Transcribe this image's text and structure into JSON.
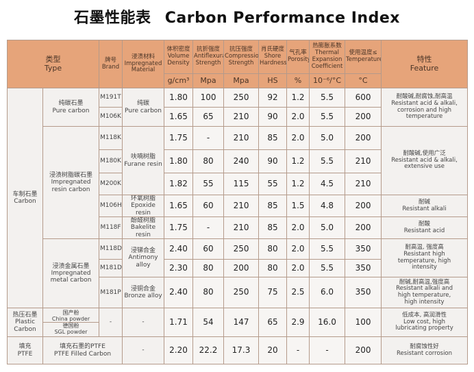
{
  "title_cn": "石墨性能表",
  "title_en": "Carbon Performance Index",
  "headers": {
    "type_cn": "类型",
    "type_en": "Type",
    "brand_cn": "牌号",
    "brand_en": "Brand",
    "impreg_cn": "浸渍材料",
    "impreg_en": "Impregnated Material",
    "density_cn": "体积密度",
    "density_en": "Volume Density",
    "flex_cn": "抗折强度",
    "flex_en": "Antiflexural Strength",
    "comp_cn": "抗压强度",
    "comp_en": "Compression Strength",
    "hard_cn": "肖氏硬度",
    "hard_en": "Shore Hardness",
    "por_cn": "气孔率",
    "por_en": "Porosity",
    "exp_cn": "热膨胀系数",
    "exp_en": "Thermal Expansion Coefficient",
    "temp_cn": "使用温度≤",
    "temp_en": "Temperature",
    "feat_cn": "特性",
    "feat_en": "Feature"
  },
  "units": {
    "density": "g/cm³",
    "flex": "Mpa",
    "comp": "Mpa",
    "hard": "HS",
    "por": "%",
    "exp": "10⁻⁶/°C",
    "temp": "°C"
  },
  "groups": {
    "car_cn": "车制石墨",
    "car_en": "Carbon",
    "pure_cn": "纯碳石墨",
    "pure_en": "Pure carbon",
    "resin_cn": "浸渍树脂碳石墨",
    "resin_en1": "Impregnated",
    "resin_en2": "resin carbon",
    "metal_cn": "浸渍金属石墨",
    "metal_en1": "Impregnated",
    "metal_en2": "metal carbon",
    "hot_cn": "热压石墨",
    "hot_en1": "Plastic",
    "hot_en2": "Carbon",
    "ptfe_cn": "填充",
    "ptfe_en": "PTFE"
  },
  "impregs": {
    "pure_cn": "纯碳",
    "pure_en": "Pure carbon",
    "furane_cn": "呋喃树脂",
    "furane_en": "Furane resin",
    "epoxide_cn": "环氧树脂",
    "epoxide_en": "Epoxide resin",
    "bakelite_cn": "酚醛树脂",
    "bakelite_en": "Bakelite resin",
    "antimony_cn": "浸锑合金",
    "antimony_en1": "Antimony",
    "antimony_en2": "alloy",
    "bronze_cn": "浸铜合金",
    "bronze_en": "Bronze alloy"
  },
  "hot_brands": {
    "cn1": "国产粉",
    "en1": "China powder",
    "cn2": "德国粉",
    "en2": "SGL powder"
  },
  "ptfe_brand": {
    "cn": "填充石墨的PTFE",
    "en": "PTFE Filled Carbon"
  },
  "rows": [
    {
      "brand": "M191T",
      "density": "1.80",
      "flex": "100",
      "comp": "250",
      "hard": "92",
      "por": "1.2",
      "exp": "5.5",
      "temp": "600"
    },
    {
      "brand": "M106K",
      "density": "1.65",
      "flex": "65",
      "comp": "210",
      "hard": "90",
      "por": "2.0",
      "exp": "5.5",
      "temp": "200"
    },
    {
      "brand": "M118K",
      "density": "1.75",
      "flex": "-",
      "comp": "210",
      "hard": "85",
      "por": "2.0",
      "exp": "5.0",
      "temp": "200"
    },
    {
      "brand": "M180K",
      "density": "1.80",
      "flex": "80",
      "comp": "240",
      "hard": "90",
      "por": "1.2",
      "exp": "5.5",
      "temp": "210"
    },
    {
      "brand": "M200K",
      "density": "1.82",
      "flex": "55",
      "comp": "115",
      "hard": "55",
      "por": "1.2",
      "exp": "4.5",
      "temp": "210"
    },
    {
      "brand": "M106H",
      "density": "1.65",
      "flex": "60",
      "comp": "210",
      "hard": "85",
      "por": "1.5",
      "exp": "4.8",
      "temp": "200"
    },
    {
      "brand": "M118F",
      "density": "1.75",
      "flex": "-",
      "comp": "210",
      "hard": "85",
      "por": "2.0",
      "exp": "5.0",
      "temp": "200"
    },
    {
      "brand": "M118D",
      "density": "2.40",
      "flex": "60",
      "comp": "250",
      "hard": "80",
      "por": "2.0",
      "exp": "5.5",
      "temp": "350"
    },
    {
      "brand": "M181D",
      "density": "2.30",
      "flex": "80",
      "comp": "200",
      "hard": "80",
      "por": "2.0",
      "exp": "5.5",
      "temp": "350"
    },
    {
      "brand": "M181P",
      "density": "2.40",
      "flex": "80",
      "comp": "250",
      "hard": "75",
      "por": "2.5",
      "exp": "6.0",
      "temp": "350"
    },
    {
      "brand": "-",
      "impreg": "-",
      "density": "1.71",
      "flex": "54",
      "comp": "147",
      "hard": "65",
      "por": "2.9",
      "exp": "16.0",
      "temp": "100"
    },
    {
      "impreg": "-",
      "density": "2.20",
      "flex": "22.2",
      "comp": "17.3",
      "hard": "20",
      "por": "-",
      "exp": "-",
      "temp": "200"
    }
  ],
  "features": {
    "f1_cn": "耐酸碱,耐腐蚀,耐高温",
    "f1_en1": "Resistant acid & alkali,",
    "f1_en2": "corrosion and high",
    "f1_en3": "temperature",
    "f2_cn": "耐酸碱,使用广泛",
    "f2_en1": "Resistant acid & alkali,",
    "f2_en2": "extensive use",
    "f3_cn": "耐碱",
    "f3_en": "Resistant alkali",
    "f4_cn": "耐酸",
    "f4_en": "Resistant acid",
    "f5_cn": "耐高温, 强度高",
    "f5_en1": "Resistant high",
    "f5_en2": "temperature, high",
    "f5_en3": "intensity",
    "f6_cn": "耐碱,耐高温,强度高",
    "f6_en1": "Resistant alkali and",
    "f6_en2": "high temperature,",
    "f6_en3": "high intensity",
    "f7_cn": "低成本, 高润滑性",
    "f7_en1": "Low cost, high",
    "f7_en2": "lubricating property",
    "f8_cn": "耐腐蚀性好",
    "f8_en": "Resistant corrosion"
  }
}
